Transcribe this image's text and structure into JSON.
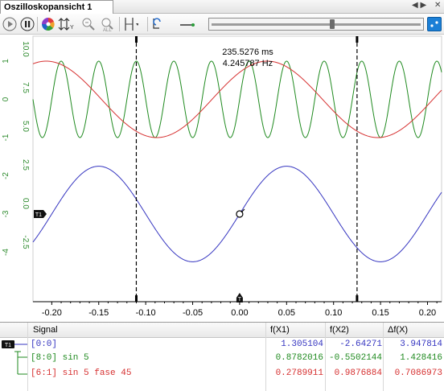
{
  "window": {
    "tab_title": "Oszilloskopansicht  1",
    "nav_arrows": "◀ ▶",
    "close_glyph": "✕"
  },
  "toolbar": {
    "buttons": [
      {
        "name": "play-icon",
        "glyph": "▶"
      },
      {
        "name": "pause-icon",
        "glyph": "⏸"
      },
      {
        "name": "color-wheel-icon",
        "glyph": ""
      },
      {
        "name": "scale-y-icon",
        "glyph": "⇅"
      },
      {
        "name": "zoom-out-icon",
        "glyph": "⊖"
      },
      {
        "name": "zoom-all-icon",
        "glyph": "ALL"
      },
      {
        "name": "cursor-icon",
        "glyph": "⊞"
      },
      {
        "name": "trigger-icon",
        "glyph": "⟲"
      },
      {
        "name": "line-style-icon",
        "glyph": "→"
      }
    ],
    "slider_value": 0.58
  },
  "measurement": {
    "period": "235.5276 ms",
    "frequency": "4.245787 Hz"
  },
  "chart_data": {
    "type": "line",
    "x_ticks": [
      "-0.20",
      "-0.15",
      "-0.10",
      "-0.05",
      "0.00",
      "0.05",
      "0.10",
      "0.15",
      "0.20"
    ],
    "x_tick_values": [
      -0.2,
      -0.15,
      -0.1,
      -0.05,
      0.0,
      0.05,
      0.1,
      0.15,
      0.2
    ],
    "xlim": [
      -0.22,
      0.215
    ],
    "y_axis_green": {
      "ticks": [
        "1",
        "0",
        "-1",
        "-2",
        "-3",
        "-4"
      ],
      "values": [
        1,
        0,
        -1,
        -2,
        -3,
        -4
      ],
      "color": "#2e8b2e"
    },
    "y_axis_blue": {
      "ticks": [
        "10.0",
        "7.5",
        "5.0",
        "2.5",
        "0.0",
        "-2.5"
      ],
      "values": [
        10.0,
        7.5,
        5.0,
        2.5,
        0.0,
        -2.5
      ],
      "color": "#2e8b2e"
    },
    "cursors": {
      "x1": -0.11,
      "x2": 0.125
    },
    "series": [
      {
        "name": "[0:0]",
        "color": "#3535c0",
        "kind": "sine",
        "freq": 5,
        "phase_deg": 0,
        "center": -3.0,
        "amp": 1.25
      },
      {
        "name": "[8:0] sin 5",
        "color": "#1f8a1f",
        "kind": "sine",
        "freq": 25,
        "phase_deg": 0,
        "center": 0.0,
        "amp": 1.0
      },
      {
        "name": "[6:1] sin 5 fase 45",
        "color": "#d63030",
        "kind": "sine",
        "freq": 4.25,
        "phase_deg": 45,
        "center": 0.0,
        "amp": 1.0
      }
    ],
    "marker_T_label": "T",
    "marker_left_label": "T1"
  },
  "table": {
    "headers": {
      "signal": "Signal",
      "fx1": "f(X1)",
      "fx2": "f(X2)",
      "dfx": "Δf(X)"
    },
    "rows": [
      {
        "signal": "[0:0]",
        "fx1": "1.305104",
        "fx2": "-2.64271",
        "dfx": "3.947814",
        "color": "#3535c0"
      },
      {
        "signal": "[8:0] sin 5",
        "fx1": "0.8782016",
        "fx2": "-0.5502144",
        "dfx": "1.428416",
        "color": "#1f8a1f"
      },
      {
        "signal": "[6:1] sin 5 fase 45",
        "fx1": "0.2789911",
        "fx2": "0.9876884",
        "dfx": "0.7086973",
        "color": "#d63030"
      }
    ],
    "badge": "T1"
  }
}
